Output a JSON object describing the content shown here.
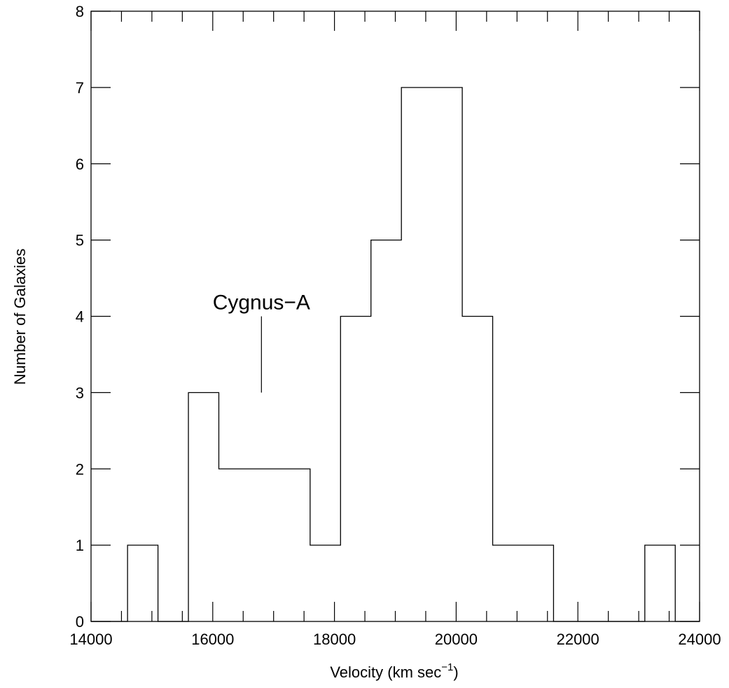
{
  "chart_data": {
    "type": "histogram",
    "xlabel": "Velocity (km sec",
    "xlabel_superscript": "−1",
    "xlabel_suffix": ")",
    "ylabel": "Number of Galaxies",
    "xlim": [
      14000,
      24000
    ],
    "ylim": [
      0,
      8
    ],
    "x_ticks": [
      14000,
      16000,
      18000,
      20000,
      22000,
      24000
    ],
    "x_tick_labels": [
      "14000",
      "16000",
      "18000",
      "20000",
      "22000",
      "24000"
    ],
    "x_minor_step": 500,
    "y_ticks": [
      0,
      1,
      2,
      3,
      4,
      5,
      6,
      7,
      8
    ],
    "y_tick_labels": [
      "0",
      "1",
      "2",
      "3",
      "4",
      "5",
      "6",
      "7",
      "8"
    ],
    "bin_edges": [
      14000,
      14600,
      15100,
      15600,
      16100,
      16600,
      17100,
      17600,
      18100,
      18600,
      19100,
      19600,
      20100,
      20600,
      21100,
      21600,
      22100,
      22600,
      23100,
      23600,
      24000
    ],
    "counts": [
      0,
      1,
      0,
      3,
      2,
      2,
      2,
      1,
      4,
      5,
      7,
      7,
      4,
      1,
      1,
      0,
      0,
      0,
      1,
      0
    ],
    "grid": false,
    "annotations": [
      {
        "text": "Cygnus−A",
        "x": 16800,
        "y_from": 3,
        "y_to": 4
      }
    ]
  }
}
